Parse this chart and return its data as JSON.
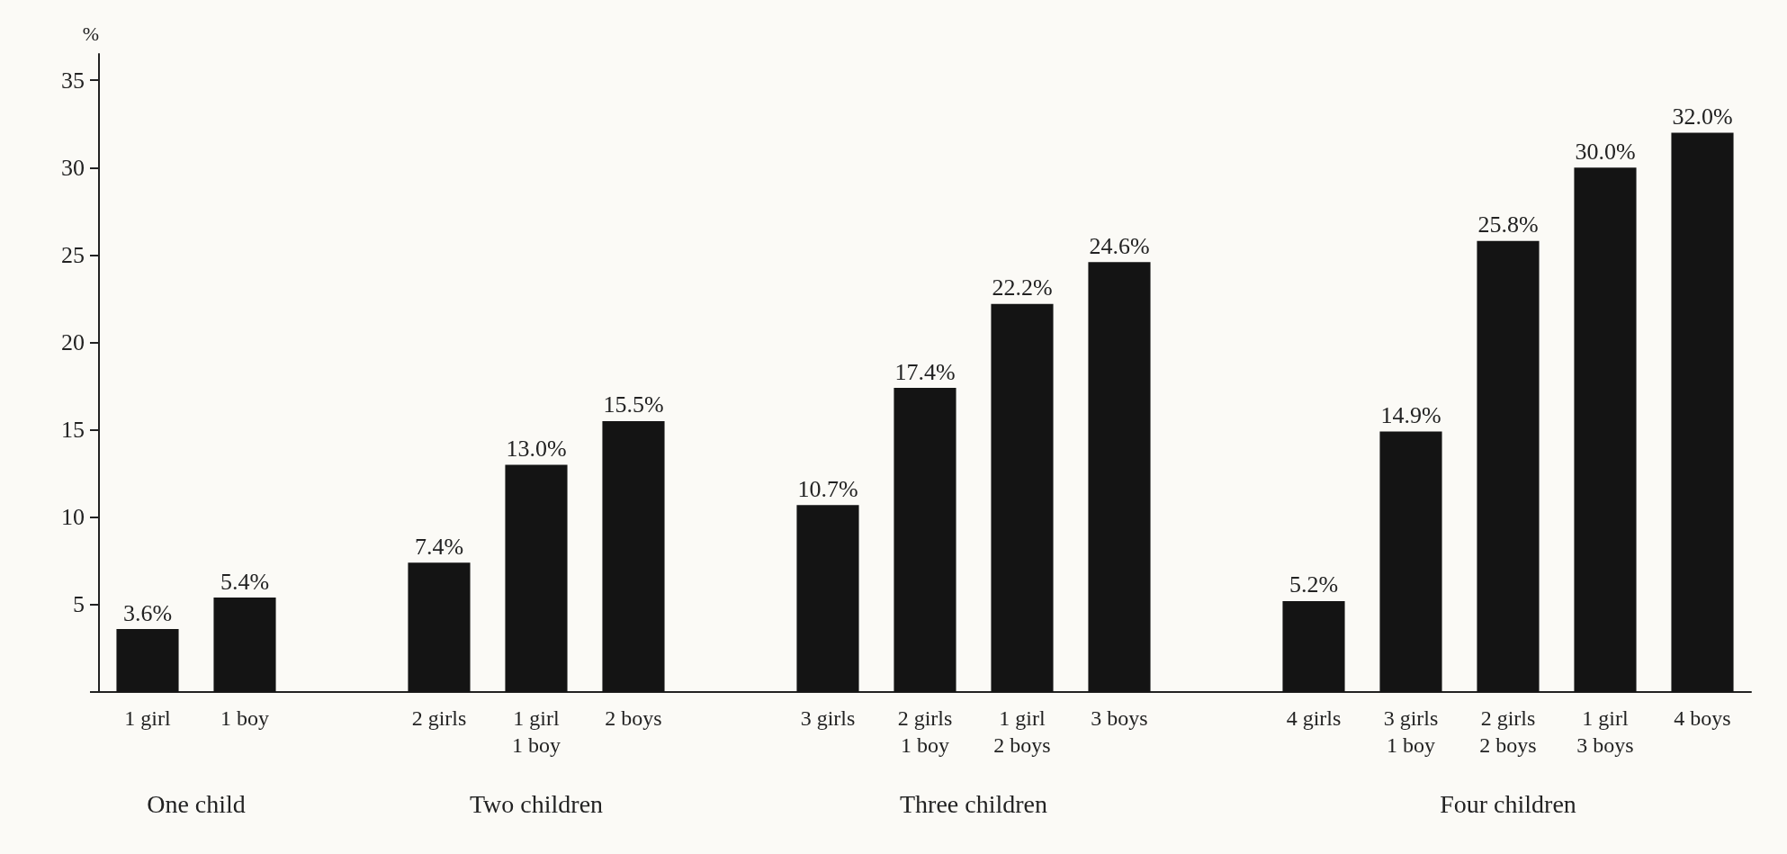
{
  "chart_data": {
    "type": "bar",
    "ylabel": "%",
    "categories": [
      "1 girl",
      "1 boy",
      null,
      "2 girls",
      "1 girl\n1 boy",
      "2 boys",
      null,
      "3 girls",
      "2 girls\n1 boy",
      "1 girl\n2 boys",
      "3 boys",
      null,
      "4 girls",
      "3 girls\n1 boy",
      "2 girls\n2 boys",
      "1 girl\n3 boys",
      "4 boys"
    ],
    "values": [
      3.6,
      5.4,
      null,
      7.4,
      13.0,
      15.5,
      null,
      10.7,
      17.4,
      22.2,
      24.6,
      null,
      5.2,
      14.9,
      25.8,
      30.0,
      32.0
    ],
    "value_labels": [
      "3.6%",
      "5.4%",
      null,
      "7.4%",
      "13.0%",
      "15.5%",
      null,
      "10.7%",
      "17.4%",
      "22.2%",
      "24.6%",
      null,
      "5.2%",
      "14.9%",
      "25.8%",
      "30.0%",
      "32.0%"
    ],
    "color": "#141414",
    "ylim": [
      0,
      36.5
    ],
    "yticks": [
      {
        "value": 0,
        "label": null
      },
      5,
      10,
      15,
      20,
      25,
      30,
      35
    ],
    "annotations": [
      "One child",
      "Two children",
      "Three children",
      "Four children"
    ]
  }
}
